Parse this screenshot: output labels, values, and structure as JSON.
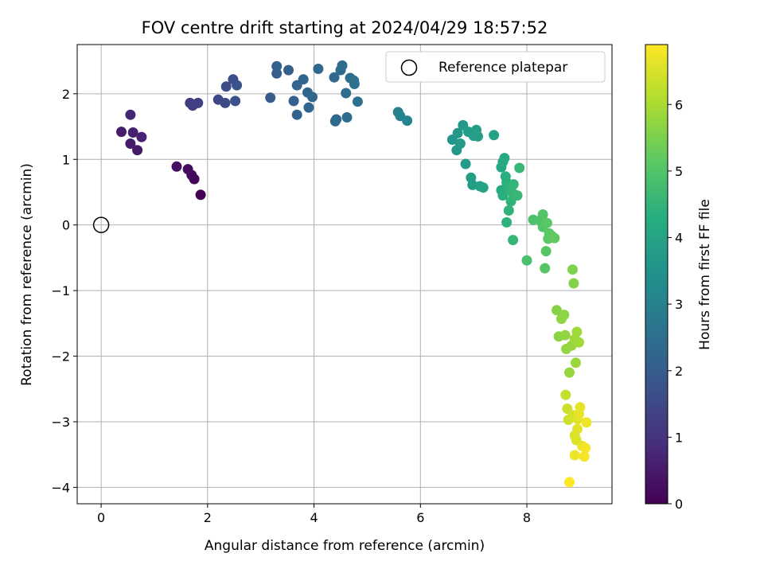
{
  "chart_data": {
    "type": "scatter",
    "title": "FOV centre drift starting at 2024/04/29 18:57:52",
    "xlabel": "Angular distance from reference (arcmin)",
    "ylabel": "Rotation from reference (arcmin)",
    "colorbar_label": "Hours from first FF file",
    "xlim": [
      -0.45,
      9.6
    ],
    "ylim": [
      -4.25,
      2.75
    ],
    "clim": [
      0,
      6.9
    ],
    "x_ticks": [
      0,
      2,
      4,
      6,
      8
    ],
    "y_ticks": [
      -4,
      -3,
      -2,
      -1,
      0,
      1,
      2
    ],
    "colorbar_ticks": [
      0,
      1,
      2,
      3,
      4,
      5,
      6
    ],
    "colormap": "viridis",
    "grid": true,
    "legend": {
      "placement": "top-right",
      "entries": [
        "Reference platepar"
      ]
    },
    "reference_point": {
      "x": 0,
      "y": 0
    },
    "points": [
      [
        1.87,
        0.46,
        0.0
      ],
      [
        1.75,
        0.7,
        0.08
      ],
      [
        1.7,
        0.76,
        0.15
      ],
      [
        1.63,
        0.85,
        0.22
      ],
      [
        1.42,
        0.89,
        0.3
      ],
      [
        0.68,
        1.14,
        0.45
      ],
      [
        0.55,
        1.24,
        0.5
      ],
      [
        0.38,
        1.42,
        0.55
      ],
      [
        0.6,
        1.41,
        0.6
      ],
      [
        0.76,
        1.34,
        0.65
      ],
      [
        0.55,
        1.68,
        0.7
      ],
      [
        1.67,
        1.86,
        1.2
      ],
      [
        1.72,
        1.82,
        1.25
      ],
      [
        1.82,
        1.86,
        1.3
      ],
      [
        2.2,
        1.91,
        1.5
      ],
      [
        2.33,
        1.86,
        1.55
      ],
      [
        2.35,
        2.11,
        1.6
      ],
      [
        2.48,
        2.22,
        1.65
      ],
      [
        2.52,
        1.89,
        1.7
      ],
      [
        2.55,
        2.13,
        1.75
      ],
      [
        3.18,
        1.94,
        2.0
      ],
      [
        3.3,
        2.31,
        2.05
      ],
      [
        3.3,
        2.42,
        2.1
      ],
      [
        3.52,
        2.36,
        2.1
      ],
      [
        3.62,
        1.89,
        2.15
      ],
      [
        3.68,
        2.13,
        2.2
      ],
      [
        3.68,
        1.68,
        2.2
      ],
      [
        3.8,
        2.22,
        2.25
      ],
      [
        3.88,
        2.02,
        2.25
      ],
      [
        3.9,
        1.79,
        2.3
      ],
      [
        3.97,
        1.95,
        2.3
      ],
      [
        4.08,
        2.38,
        2.35
      ],
      [
        4.38,
        2.25,
        2.35
      ],
      [
        4.4,
        1.58,
        2.4
      ],
      [
        4.42,
        1.61,
        2.4
      ],
      [
        4.5,
        2.36,
        2.4
      ],
      [
        4.53,
        2.43,
        2.45
      ],
      [
        4.6,
        2.01,
        2.45
      ],
      [
        4.62,
        1.64,
        2.5
      ],
      [
        4.68,
        2.24,
        2.5
      ],
      [
        4.75,
        2.2,
        2.55
      ],
      [
        4.76,
        2.15,
        2.55
      ],
      [
        4.82,
        1.88,
        2.6
      ],
      [
        5.58,
        1.72,
        3.0
      ],
      [
        5.62,
        1.66,
        3.05
      ],
      [
        5.75,
        1.59,
        3.1
      ],
      [
        6.6,
        1.3,
        3.6
      ],
      [
        6.68,
        1.14,
        3.65
      ],
      [
        6.7,
        1.4,
        3.65
      ],
      [
        6.75,
        1.24,
        3.7
      ],
      [
        6.8,
        1.52,
        3.7
      ],
      [
        6.85,
        0.93,
        3.75
      ],
      [
        6.9,
        1.42,
        3.75
      ],
      [
        6.95,
        0.72,
        3.8
      ],
      [
        6.98,
        0.61,
        3.8
      ],
      [
        7.0,
        1.36,
        3.85
      ],
      [
        7.05,
        1.45,
        3.85
      ],
      [
        7.08,
        1.35,
        3.9
      ],
      [
        7.12,
        0.59,
        3.9
      ],
      [
        7.18,
        0.57,
        3.95
      ],
      [
        7.38,
        1.37,
        3.95
      ],
      [
        7.52,
        0.88,
        4.1
      ],
      [
        7.55,
        0.96,
        4.15
      ],
      [
        7.58,
        1.02,
        4.2
      ],
      [
        7.52,
        0.53,
        4.25
      ],
      [
        7.55,
        0.45,
        4.3
      ],
      [
        7.6,
        0.74,
        4.3
      ],
      [
        7.62,
        0.65,
        4.35
      ],
      [
        7.62,
        0.04,
        4.4
      ],
      [
        7.65,
        0.58,
        4.4
      ],
      [
        7.66,
        0.22,
        4.45
      ],
      [
        7.7,
        0.36,
        4.45
      ],
      [
        7.72,
        0.5,
        4.5
      ],
      [
        7.75,
        0.62,
        4.5
      ],
      [
        7.76,
        0.45,
        4.55
      ],
      [
        7.74,
        -0.23,
        4.55
      ],
      [
        7.82,
        0.45,
        4.6
      ],
      [
        7.86,
        0.87,
        4.6
      ],
      [
        8.0,
        -0.54,
        4.85
      ],
      [
        8.12,
        0.08,
        4.9
      ],
      [
        8.25,
        0.07,
        4.95
      ],
      [
        8.3,
        0.16,
        5.0
      ],
      [
        8.3,
        -0.03,
        5.0
      ],
      [
        8.34,
        -0.66,
        5.05
      ],
      [
        8.36,
        -0.4,
        5.05
      ],
      [
        8.38,
        0.03,
        5.1
      ],
      [
        8.42,
        -0.13,
        5.1
      ],
      [
        8.4,
        -0.21,
        5.15
      ],
      [
        8.46,
        -0.16,
        5.15
      ],
      [
        8.52,
        -0.2,
        5.2
      ],
      [
        8.56,
        -1.3,
        5.6
      ],
      [
        8.6,
        -1.7,
        5.65
      ],
      [
        8.65,
        -1.43,
        5.7
      ],
      [
        8.7,
        -1.37,
        5.7
      ],
      [
        8.72,
        -1.68,
        5.75
      ],
      [
        8.74,
        -1.89,
        5.75
      ],
      [
        8.8,
        -2.25,
        5.8
      ],
      [
        8.84,
        -1.84,
        5.8
      ],
      [
        8.86,
        -0.68,
        5.55
      ],
      [
        8.88,
        -0.89,
        5.6
      ],
      [
        8.9,
        -1.74,
        5.85
      ],
      [
        8.92,
        -2.1,
        5.85
      ],
      [
        8.94,
        -1.63,
        5.9
      ],
      [
        8.98,
        -1.79,
        5.9
      ],
      [
        8.73,
        -2.59,
        6.3
      ],
      [
        8.76,
        -2.8,
        6.35
      ],
      [
        8.78,
        -2.97,
        6.4
      ],
      [
        8.8,
        -3.92,
        6.9
      ],
      [
        8.86,
        -2.9,
        6.45
      ],
      [
        8.9,
        -3.21,
        6.5
      ],
      [
        8.9,
        -3.51,
        6.75
      ],
      [
        8.93,
        -3.28,
        6.55
      ],
      [
        8.95,
        -3.11,
        6.6
      ],
      [
        8.96,
        -2.96,
        6.6
      ],
      [
        8.98,
        -2.88,
        6.65
      ],
      [
        9.0,
        -2.78,
        6.65
      ],
      [
        9.04,
        -3.37,
        6.7
      ],
      [
        9.08,
        -3.53,
        6.8
      ],
      [
        9.1,
        -3.4,
        6.8
      ],
      [
        9.12,
        -3.01,
        6.75
      ]
    ]
  }
}
